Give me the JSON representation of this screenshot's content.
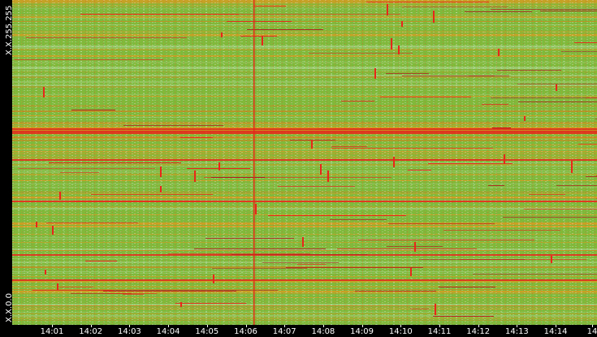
{
  "y_axis": {
    "top_label": "X.X.255.255",
    "bottom_label": "X.X.0.0"
  },
  "x_axis": {
    "labels": [
      "14:01",
      "14:02",
      "14:03",
      "14:04",
      "14:05",
      "14:06",
      "14:07",
      "14:08",
      "14:09",
      "14:10",
      "14:11",
      "14:12",
      "14:13",
      "14:14",
      "14"
    ]
  },
  "colors": {
    "background": "#000000",
    "base_green": "#7dba3c",
    "light_green": "#9fd07c",
    "orange": "#e09a1e",
    "dark_orange": "#d9801a",
    "red": "#e8261a",
    "dark_red": "#b2151a",
    "white_speckle": "#f2f2f2",
    "axis_text": "#ffffff"
  },
  "chart_data": {
    "type": "heatmap",
    "title": "",
    "xlabel": "",
    "ylabel": "",
    "x_ticks": [
      "14:01",
      "14:02",
      "14:03",
      "14:04",
      "14:05",
      "14:06",
      "14:07",
      "14:08",
      "14:09",
      "14:10",
      "14:11",
      "14:12",
      "14:13",
      "14:14",
      "14"
    ],
    "y_ticks": [
      "X.X.0.0",
      "X.X.255.255"
    ],
    "y_range": [
      "X.X.0.0",
      "X.X.255.255"
    ],
    "x_range": [
      "14:00",
      "14:15"
    ],
    "grid": false,
    "legend": "none",
    "notable_events": [
      {
        "time": "14:06",
        "description": "vertical red line spanning the address range"
      }
    ]
  }
}
